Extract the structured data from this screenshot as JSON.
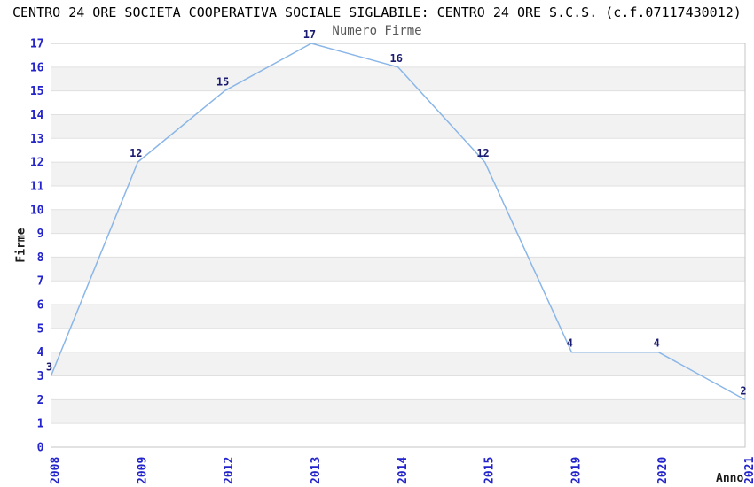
{
  "page": {
    "title": "CENTRO 24 ORE SOCIETA COOPERATIVA SOCIALE SIGLABILE: CENTRO 24 ORE S.C.S. (c.f.07117430012)"
  },
  "chart_data": {
    "type": "line",
    "title": "Numero Firme",
    "xlabel": "Anno",
    "ylabel": "Firme",
    "categories": [
      "2008",
      "2009",
      "2012",
      "2013",
      "2014",
      "2015",
      "2019",
      "2020",
      "2021"
    ],
    "values": [
      3,
      12,
      15,
      17,
      16,
      12,
      4,
      4,
      2
    ],
    "ylim": [
      0,
      17
    ],
    "ytick_step": 1,
    "grid": "alternating-horizontal-bands",
    "legend": "none",
    "colors": {
      "line": "#8ab6e8",
      "tick_label": "#2424cc",
      "data_label": "#1a1a70",
      "band": "#f2f2f2",
      "gridline": "#e0e0e0",
      "plot_border": "#c4c4c4",
      "title": "#000000",
      "subtitle": "#595959",
      "axis_label": "#1a1a1a",
      "background": "#ffffff"
    }
  }
}
